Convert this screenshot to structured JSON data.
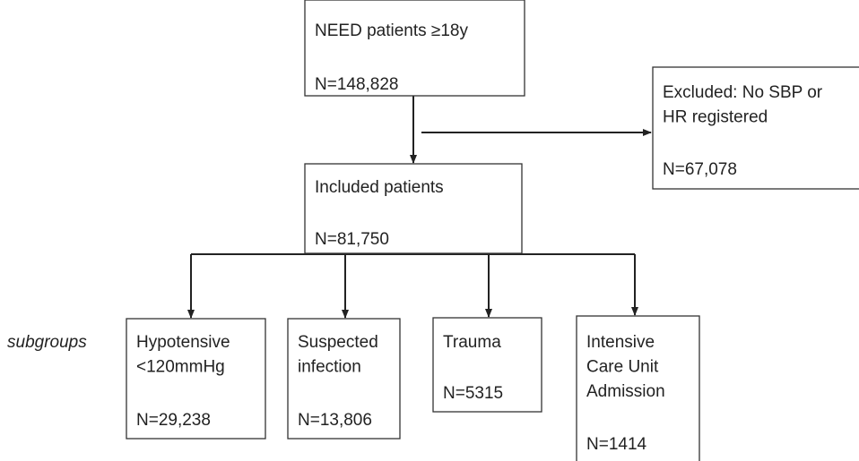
{
  "label": "subgroups",
  "nodes": [
    {
      "lines": [
        "NEED patients ≥18y"
      ],
      "n": "N=148,828"
    },
    {
      "lines": [
        "Excluded: No SBP or",
        "HR registered"
      ],
      "n": "N=67,078"
    },
    {
      "lines": [
        "Included patients"
      ],
      "n": "N=81,750"
    },
    {
      "lines": [
        "Hypotensive",
        "<120mmHg"
      ],
      "n": "N=29,238"
    },
    {
      "lines": [
        "Suspected",
        "infection"
      ],
      "n": "N=13,806"
    },
    {
      "lines": [
        "Trauma"
      ],
      "n": "N=5315"
    },
    {
      "lines": [
        "Intensive",
        "Care Unit",
        "Admission"
      ],
      "n": "N=1414"
    }
  ]
}
